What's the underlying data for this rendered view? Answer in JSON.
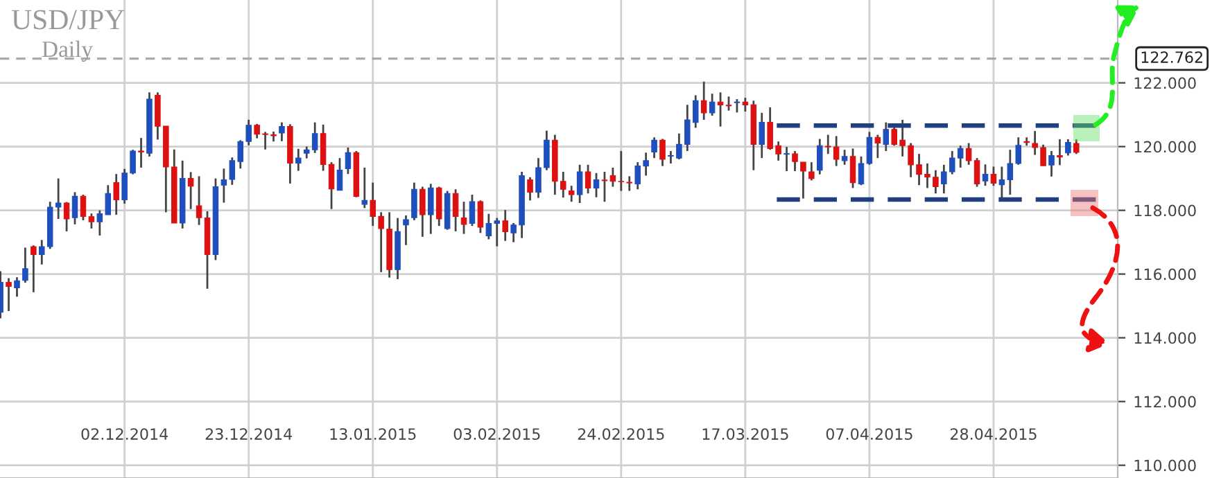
{
  "chart_data": {
    "type": "candlestick",
    "title": "USD/JPY",
    "subtitle": "Daily",
    "categories": [
      null,
      null,
      null,
      null,
      null,
      null,
      null,
      null,
      null,
      null,
      null,
      null,
      null,
      null,
      null,
      "02.12.2014",
      null,
      null,
      null,
      null,
      null,
      null,
      null,
      null,
      null,
      null,
      null,
      null,
      null,
      null,
      "23.12.2014",
      null,
      null,
      null,
      null,
      null,
      null,
      null,
      null,
      null,
      null,
      null,
      null,
      null,
      null,
      "13.01.2015",
      null,
      null,
      null,
      null,
      null,
      null,
      null,
      null,
      null,
      null,
      null,
      null,
      null,
      null,
      "03.02.2015",
      null,
      null,
      null,
      null,
      null,
      null,
      null,
      null,
      null,
      null,
      null,
      null,
      null,
      null,
      "24.02.2015",
      null,
      null,
      null,
      null,
      null,
      null,
      null,
      null,
      null,
      null,
      null,
      null,
      null,
      null,
      "17.03.2015",
      null,
      null,
      null,
      null,
      null,
      null,
      null,
      null,
      null,
      null,
      null,
      null,
      null,
      null,
      "07.04.2015",
      null,
      null,
      null,
      null,
      null,
      null,
      null,
      null,
      null,
      null,
      null,
      null,
      null,
      null,
      "28.04.2015",
      null,
      null,
      null,
      null,
      null,
      null,
      null,
      null,
      null,
      null
    ],
    "ohlc": [
      [
        114.8,
        116.09,
        114.61,
        115.74
      ],
      [
        115.74,
        115.87,
        114.84,
        115.61
      ],
      [
        115.57,
        115.9,
        115.29,
        115.79
      ],
      [
        115.8,
        116.83,
        115.73,
        116.17
      ],
      [
        116.86,
        116.9,
        115.43,
        116.61
      ],
      [
        116.61,
        117.07,
        116.3,
        116.86
      ],
      [
        116.86,
        118.27,
        116.79,
        118.1
      ],
      [
        118.1,
        119.0,
        117.73,
        118.23
      ],
      [
        118.23,
        118.26,
        117.34,
        117.73
      ],
      [
        117.77,
        118.57,
        117.56,
        118.44
      ],
      [
        118.44,
        118.49,
        117.69,
        117.81
      ],
      [
        117.8,
        117.9,
        117.43,
        117.64
      ],
      [
        117.64,
        118.0,
        117.21,
        117.89
      ],
      [
        117.86,
        118.79,
        117.86,
        118.53
      ],
      [
        118.87,
        119.14,
        117.86,
        118.33
      ],
      [
        118.33,
        119.3,
        118.21,
        119.17
      ],
      [
        119.17,
        119.9,
        119.13,
        119.86
      ],
      [
        119.86,
        120.27,
        119.34,
        119.83
      ],
      [
        119.79,
        121.7,
        119.69,
        121.49
      ],
      [
        121.61,
        121.7,
        120.22,
        120.64
      ],
      [
        120.64,
        120.64,
        117.94,
        119.36
      ],
      [
        119.36,
        119.91,
        117.6,
        117.6
      ],
      [
        117.6,
        119.56,
        117.43,
        119.0
      ],
      [
        119.0,
        119.2,
        118.04,
        118.76
      ],
      [
        118.14,
        119.07,
        117.54,
        117.77
      ],
      [
        117.76,
        117.97,
        115.54,
        116.61
      ],
      [
        116.61,
        119.0,
        116.44,
        118.74
      ],
      [
        118.79,
        119.31,
        118.24,
        118.96
      ],
      [
        118.97,
        119.66,
        118.8,
        119.56
      ],
      [
        119.53,
        120.2,
        119.31,
        120.16
      ],
      [
        120.16,
        120.84,
        120.04,
        120.67
      ],
      [
        120.67,
        120.71,
        120.26,
        120.39
      ],
      [
        120.4,
        120.46,
        119.91,
        120.38
      ],
      [
        120.37,
        120.47,
        120.16,
        120.34
      ],
      [
        120.43,
        120.76,
        120.17,
        120.63
      ],
      [
        120.63,
        120.7,
        118.84,
        119.48
      ],
      [
        119.48,
        119.93,
        119.24,
        119.64
      ],
      [
        119.79,
        120.0,
        119.63,
        119.9
      ],
      [
        119.9,
        120.76,
        119.8,
        120.41
      ],
      [
        120.41,
        120.69,
        119.24,
        119.44
      ],
      [
        119.44,
        119.51,
        118.04,
        118.67
      ],
      [
        118.63,
        119.64,
        118.63,
        119.26
      ],
      [
        119.31,
        119.97,
        119.14,
        119.81
      ],
      [
        119.81,
        119.86,
        118.41,
        118.44
      ],
      [
        118.19,
        119.34,
        118.07,
        118.31
      ],
      [
        118.31,
        118.87,
        117.51,
        117.81
      ],
      [
        117.81,
        117.94,
        116.06,
        117.43
      ],
      [
        117.41,
        117.94,
        115.89,
        116.14
      ],
      [
        116.14,
        117.76,
        115.84,
        117.33
      ],
      [
        117.54,
        117.84,
        116.91,
        117.71
      ],
      [
        117.77,
        118.87,
        117.69,
        118.66
      ],
      [
        118.66,
        118.74,
        117.17,
        117.86
      ],
      [
        117.86,
        118.83,
        117.26,
        118.7
      ],
      [
        118.7,
        118.74,
        117.51,
        117.73
      ],
      [
        117.43,
        118.61,
        117.39,
        118.53
      ],
      [
        118.53,
        118.66,
        117.34,
        117.81
      ],
      [
        117.76,
        118.27,
        117.26,
        117.56
      ],
      [
        117.59,
        118.49,
        117.51,
        118.27
      ],
      [
        118.27,
        118.31,
        117.29,
        117.47
      ],
      [
        117.2,
        117.89,
        117.09,
        117.59
      ],
      [
        117.59,
        117.76,
        116.87,
        117.67
      ],
      [
        117.67,
        118.01,
        117.04,
        117.33
      ],
      [
        117.29,
        117.6,
        117.0,
        117.54
      ],
      [
        117.54,
        119.21,
        117.13,
        119.09
      ],
      [
        118.96,
        119.04,
        118.31,
        118.57
      ],
      [
        118.57,
        119.64,
        118.39,
        119.34
      ],
      [
        119.34,
        120.5,
        119.26,
        120.2
      ],
      [
        120.2,
        120.37,
        118.49,
        118.91
      ],
      [
        118.91,
        119.21,
        118.4,
        118.66
      ],
      [
        118.61,
        118.77,
        118.27,
        118.49
      ],
      [
        118.49,
        119.43,
        118.23,
        119.21
      ],
      [
        119.21,
        119.43,
        118.53,
        118.7
      ],
      [
        118.7,
        119.17,
        118.41,
        118.96
      ],
      [
        118.95,
        119.21,
        118.27,
        118.93
      ],
      [
        119.09,
        119.34,
        118.74,
        118.91
      ],
      [
        118.91,
        119.86,
        118.61,
        118.9
      ],
      [
        118.88,
        119.07,
        118.61,
        118.86
      ],
      [
        118.83,
        119.51,
        118.66,
        119.39
      ],
      [
        119.39,
        119.81,
        119.09,
        119.56
      ],
      [
        119.83,
        120.29,
        119.64,
        120.2
      ],
      [
        120.2,
        120.24,
        119.39,
        119.6
      ],
      [
        119.7,
        119.86,
        119.47,
        119.72
      ],
      [
        119.64,
        120.41,
        119.6,
        120.07
      ],
      [
        120.07,
        121.31,
        119.86,
        120.84
      ],
      [
        120.76,
        121.61,
        120.59,
        121.44
      ],
      [
        121.44,
        122.04,
        120.84,
        121.06
      ],
      [
        121.06,
        121.66,
        120.97,
        121.4
      ],
      [
        121.4,
        121.7,
        120.63,
        121.31
      ],
      [
        121.3,
        121.57,
        121.13,
        121.28
      ],
      [
        121.38,
        121.49,
        121.07,
        121.4
      ],
      [
        121.4,
        121.53,
        121.1,
        121.31
      ],
      [
        121.31,
        121.44,
        119.26,
        120.07
      ],
      [
        120.07,
        121.06,
        119.64,
        120.76
      ],
      [
        120.76,
        121.23,
        119.9,
        119.94
      ],
      [
        120.03,
        120.16,
        119.56,
        119.77
      ],
      [
        119.76,
        119.99,
        119.23,
        119.78
      ],
      [
        119.77,
        119.86,
        119.23,
        119.53
      ],
      [
        119.51,
        119.51,
        118.37,
        119.23
      ],
      [
        119.21,
        119.51,
        118.94,
        119.0
      ],
      [
        119.26,
        120.24,
        119.13,
        120.03
      ],
      [
        120.01,
        120.37,
        119.77,
        119.99
      ],
      [
        119.99,
        120.33,
        119.39,
        119.6
      ],
      [
        119.56,
        119.9,
        119.43,
        119.69
      ],
      [
        119.69,
        119.94,
        118.7,
        118.87
      ],
      [
        118.83,
        119.69,
        118.79,
        119.47
      ],
      [
        119.47,
        120.46,
        119.43,
        120.29
      ],
      [
        120.29,
        120.37,
        119.64,
        120.11
      ],
      [
        120.07,
        120.76,
        119.86,
        120.54
      ],
      [
        120.54,
        120.63,
        120.03,
        120.07
      ],
      [
        120.2,
        120.84,
        119.69,
        120.03
      ],
      [
        120.03,
        120.11,
        119.04,
        119.43
      ],
      [
        119.43,
        119.77,
        118.79,
        119.13
      ],
      [
        119.13,
        119.47,
        118.7,
        119.04
      ],
      [
        119.04,
        119.26,
        118.53,
        118.74
      ],
      [
        118.83,
        119.43,
        118.53,
        119.21
      ],
      [
        119.21,
        119.86,
        119.13,
        119.64
      ],
      [
        119.64,
        120.03,
        119.34,
        119.94
      ],
      [
        119.94,
        120.11,
        119.43,
        119.56
      ],
      [
        119.56,
        119.64,
        118.74,
        118.83
      ],
      [
        118.92,
        119.44,
        118.77,
        119.13
      ],
      [
        119.13,
        119.37,
        118.77,
        118.85
      ],
      [
        118.8,
        119.37,
        118.37,
        118.96
      ],
      [
        118.96,
        119.9,
        118.49,
        119.47
      ],
      [
        119.47,
        120.29,
        119.43,
        120.04
      ],
      [
        120.16,
        120.29,
        120.03,
        120.13
      ],
      [
        120.1,
        120.49,
        119.74,
        119.97
      ],
      [
        119.97,
        120.06,
        119.4,
        119.4
      ],
      [
        119.42,
        119.86,
        119.06,
        119.72
      ],
      [
        119.72,
        120.23,
        119.42,
        119.67
      ],
      [
        119.8,
        120.23,
        119.72,
        120.13
      ],
      [
        120.1,
        120.23,
        119.77,
        119.82
      ]
    ],
    "colors": [
      "#1f4fbd",
      "#dd1111",
      "#1f4fbd",
      "#1f4fbd",
      "#dd1111",
      "#1f4fbd",
      "#1f4fbd",
      "#1f4fbd",
      "#dd1111",
      "#1f4fbd",
      "#dd1111",
      "#dd1111",
      "#1f4fbd",
      "#1f4fbd",
      "#dd1111",
      "#1f4fbd",
      "#1f4fbd",
      "#dd1111",
      "#1f4fbd",
      "#dd1111",
      "#dd1111",
      "#dd1111",
      "#1f4fbd",
      "#dd1111",
      "#dd1111",
      "#dd1111",
      "#1f4fbd",
      "#1f4fbd",
      "#1f4fbd",
      "#1f4fbd",
      "#1f4fbd",
      "#dd1111",
      "#dd1111",
      "#dd1111",
      "#1f4fbd",
      "#dd1111",
      "#1f4fbd",
      "#1f4fbd",
      "#1f4fbd",
      "#dd1111",
      "#dd1111",
      "#1f4fbd",
      "#1f4fbd",
      "#dd1111",
      "#1f4fbd",
      "#dd1111",
      "#dd1111",
      "#dd1111",
      "#1f4fbd",
      "#1f4fbd",
      "#1f4fbd",
      "#dd1111",
      "#1f4fbd",
      "#dd1111",
      "#1f4fbd",
      "#dd1111",
      "#dd1111",
      "#1f4fbd",
      "#dd1111",
      "#1f4fbd",
      "#1f4fbd",
      "#dd1111",
      "#1f4fbd",
      "#1f4fbd",
      "#dd1111",
      "#1f4fbd",
      "#1f4fbd",
      "#dd1111",
      "#dd1111",
      "#dd1111",
      "#1f4fbd",
      "#dd1111",
      "#1f4fbd",
      "#dd1111",
      "#dd1111",
      "#dd1111",
      "#dd1111",
      "#1f4fbd",
      "#1f4fbd",
      "#1f4fbd",
      "#dd1111",
      "#1f4fbd",
      "#1f4fbd",
      "#1f4fbd",
      "#1f4fbd",
      "#dd1111",
      "#1f4fbd",
      "#dd1111",
      "#dd1111",
      "#1f4fbd",
      "#dd1111",
      "#dd1111",
      "#1f4fbd",
      "#dd1111",
      "#dd1111",
      "#1f4fbd",
      "#dd1111",
      "#dd1111",
      "#dd1111",
      "#1f4fbd",
      "#dd1111",
      "#dd1111",
      "#1f4fbd",
      "#dd1111",
      "#1f4fbd",
      "#1f4fbd",
      "#dd1111",
      "#1f4fbd",
      "#dd1111",
      "#dd1111",
      "#dd1111",
      "#dd1111",
      "#dd1111",
      "#dd1111",
      "#1f4fbd",
      "#1f4fbd",
      "#1f4fbd",
      "#dd1111",
      "#dd1111",
      "#1f4fbd",
      "#dd1111",
      "#1f4fbd",
      "#1f4fbd",
      "#1f4fbd",
      "#dd1111",
      "#dd1111",
      "#dd1111",
      "#1f4fbd",
      "#dd1111",
      "#1f4fbd",
      "#dd1111"
    ],
    "ylim": [
      109.6,
      124.6
    ],
    "yticks": [
      {
        "value": 110,
        "label": "110.000"
      },
      {
        "value": 112,
        "label": "112.000"
      },
      {
        "value": 114,
        "label": "114.000"
      },
      {
        "value": 116,
        "label": "116.000"
      },
      {
        "value": 118,
        "label": "118.000"
      },
      {
        "value": 120,
        "label": "120.000"
      },
      {
        "value": 122,
        "label": "122.000"
      }
    ],
    "grid": true,
    "ref_lines": [
      {
        "axis": "y",
        "value": 122.762,
        "label": "122.762",
        "color": "#aaaaaa",
        "line_style": "dashed"
      },
      {
        "axis": "y",
        "value": 120.66,
        "color": "#1f3f7f",
        "line_style": "dashed"
      },
      {
        "axis": "y",
        "value": 118.34,
        "color": "#1f3f7f",
        "line_style": "dashed"
      }
    ]
  }
}
